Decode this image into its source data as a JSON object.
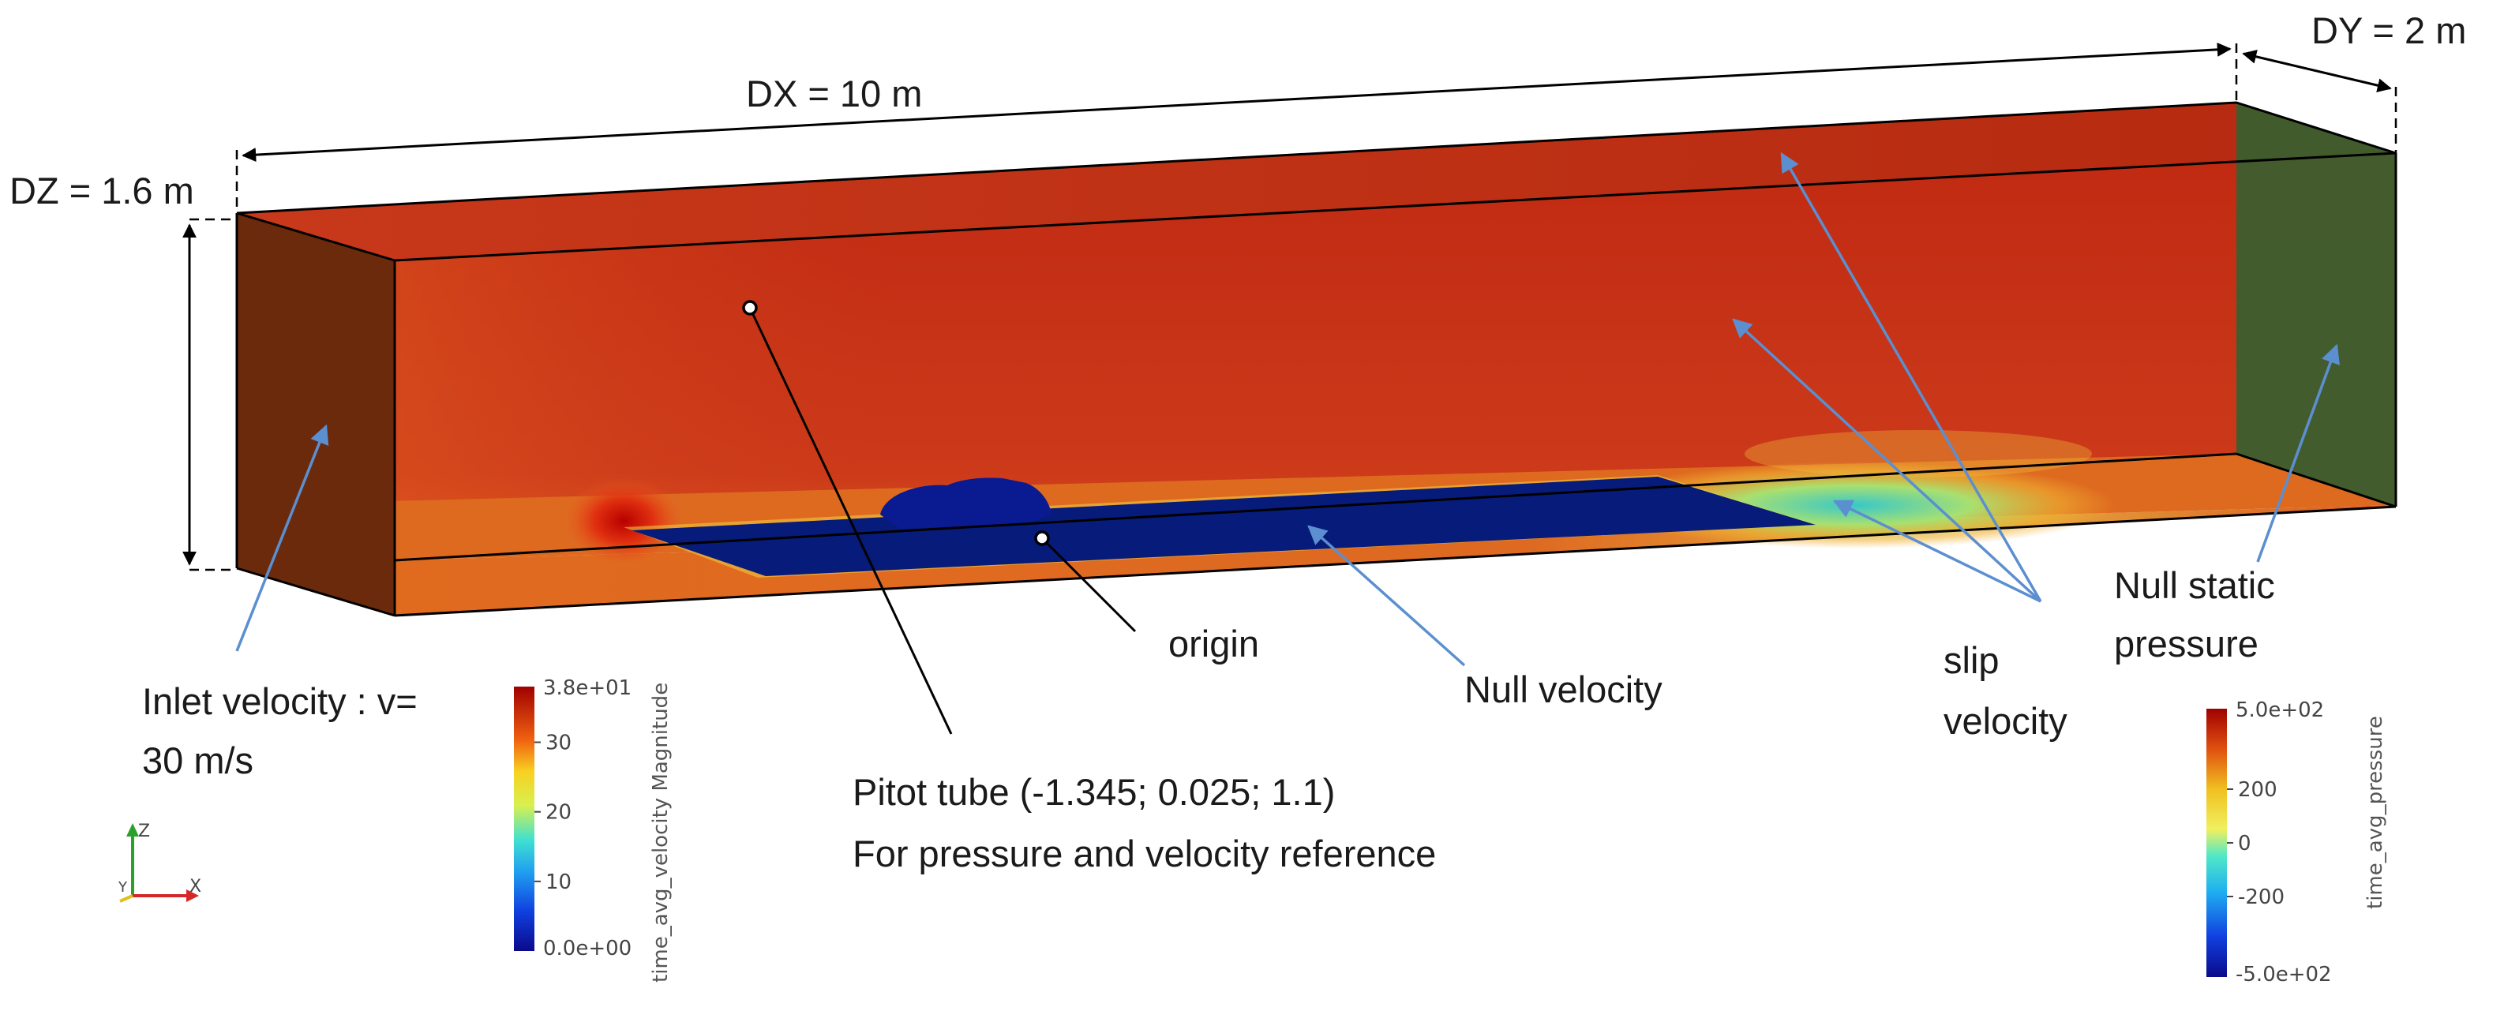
{
  "dimensions": {
    "dx": "DX = 10 m",
    "dy": "DY = 2 m",
    "dz": "DZ = 1.6 m"
  },
  "annotations": {
    "inlet_line1": "Inlet velocity : v=",
    "inlet_line2": "30 m/s",
    "origin": "origin",
    "null_velocity": "Null velocity",
    "slip_line1": "slip",
    "slip_line2": "velocity",
    "null_static_line1": "Null static",
    "null_static_line2": "pressure",
    "pitot_line1": "Pitot tube (-1.345; 0.025; 1.1)",
    "pitot_line2": "For pressure and velocity reference"
  },
  "axes_triad": {
    "z": "Z",
    "y": "Y",
    "x": "X"
  },
  "velocity_colorbar": {
    "title": "time_avg_velocity Magnitude",
    "max_label": "3.8e+01",
    "min_label": "0.0e+00",
    "min": 0,
    "max": 38,
    "ticks": [
      {
        "value": 30,
        "label": "30"
      },
      {
        "value": 20,
        "label": "20"
      },
      {
        "value": 10,
        "label": "10"
      }
    ]
  },
  "pressure_colorbar": {
    "title": "time_avg_pressure",
    "max_label": "5.0e+02",
    "min_label": "-5.0e+02",
    "min": -500,
    "max": 500,
    "ticks": [
      {
        "value": 200,
        "label": "200"
      },
      {
        "value": 0,
        "label": "0"
      },
      {
        "value": -200,
        "label": "-200"
      }
    ]
  },
  "colors": {
    "box_back": "#c8311a",
    "box_inlet": "#6b2a0c",
    "box_outlet": "#3d5e2f",
    "floor_patch": "#071b7a",
    "arrow_blue": "#5b8fd0",
    "line_black": "#000000"
  }
}
